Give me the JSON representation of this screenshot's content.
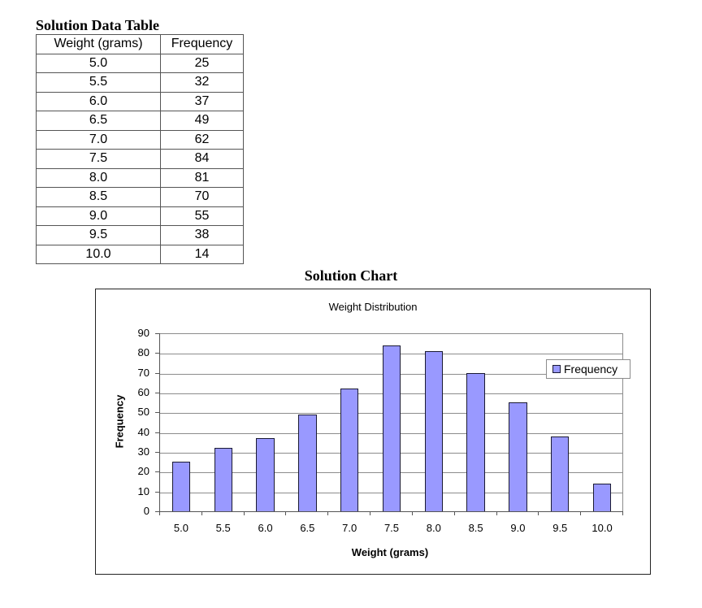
{
  "table": {
    "title": "Solution Data Table",
    "columns": [
      "Weight (grams)",
      "Frequency"
    ],
    "rows": [
      [
        "5.0",
        "25"
      ],
      [
        "5.5",
        "32"
      ],
      [
        "6.0",
        "37"
      ],
      [
        "6.5",
        "49"
      ],
      [
        "7.0",
        "62"
      ],
      [
        "7.5",
        "84"
      ],
      [
        "8.0",
        "81"
      ],
      [
        "8.5",
        "70"
      ],
      [
        "9.0",
        "55"
      ],
      [
        "9.5",
        "38"
      ],
      [
        "10.0",
        "14"
      ]
    ]
  },
  "chart_heading": "Solution Chart",
  "colors": {
    "bar_fill": "#9999ff",
    "bar_border": "#1a1a33",
    "gridline": "#8c8c8c"
  },
  "chart_data": {
    "type": "bar",
    "title": "Weight Distribution",
    "xlabel": "Weight (grams)",
    "ylabel": "Frequency",
    "categories": [
      "5.0",
      "5.5",
      "6.0",
      "6.5",
      "7.0",
      "7.5",
      "8.0",
      "8.5",
      "9.0",
      "9.5",
      "10.0"
    ],
    "series": [
      {
        "name": "Frequency",
        "values": [
          25,
          32,
          37,
          49,
          62,
          84,
          81,
          70,
          55,
          38,
          14
        ]
      }
    ],
    "ylim": [
      0,
      90
    ],
    "yticks": [
      0,
      10,
      20,
      30,
      40,
      50,
      60,
      70,
      80,
      90
    ],
    "grid": true,
    "legend_position": "right"
  }
}
